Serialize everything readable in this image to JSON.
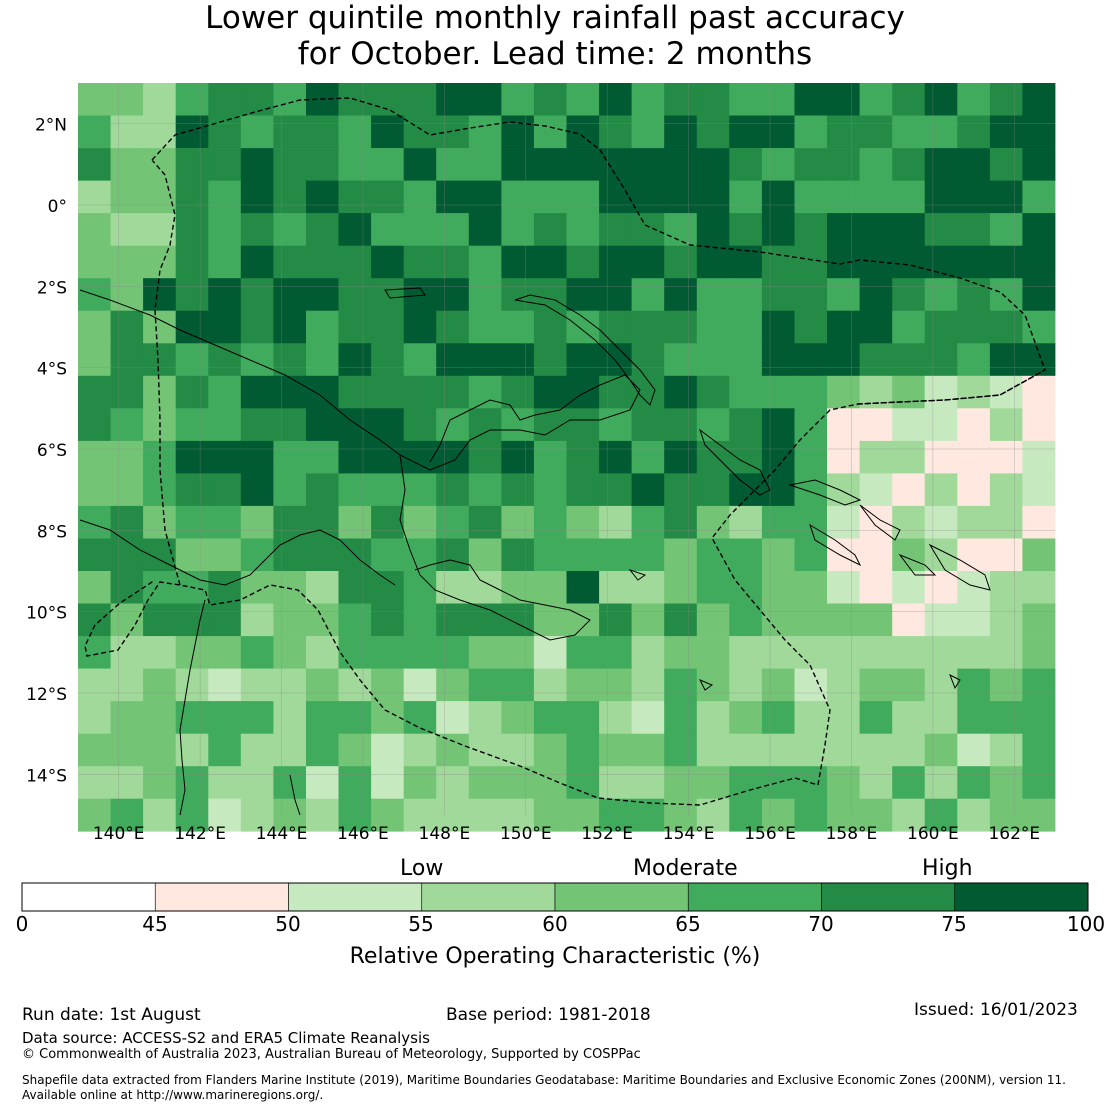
{
  "title_line1": "Lower quintile monthly rainfall past accuracy",
  "title_line2": "for October. Lead time: 2 months",
  "map": {
    "lat_labels": [
      "2°N",
      "0°",
      "2°S",
      "4°S",
      "6°S",
      "8°S",
      "10°S",
      "12°S",
      "14°S"
    ],
    "lon_labels": [
      "140°E",
      "142°E",
      "144°E",
      "146°E",
      "148°E",
      "150°E",
      "152°E",
      "154°E",
      "156°E",
      "158°E",
      "160°E",
      "162°E"
    ],
    "lat_values": [
      2,
      0,
      -2,
      -4,
      -6,
      -8,
      -10,
      -12,
      -14
    ],
    "lon_values": [
      140,
      142,
      144,
      146,
      148,
      150,
      152,
      154,
      156,
      158,
      160,
      162
    ],
    "extent": {
      "lon_min": 139.0,
      "lon_max": 163.0,
      "lat_min": -15.0,
      "lat_max": 3.0
    },
    "grid_resolution_deg": 0.8
  },
  "colorbar": {
    "category_labels": [
      "Low",
      "Moderate",
      "High"
    ],
    "ticks": [
      "0",
      "45",
      "50",
      "55",
      "60",
      "65",
      "70",
      "75",
      "100"
    ],
    "colors": [
      "#ffffff",
      "#fee8df",
      "#c7e9c0",
      "#a1d99b",
      "#74c476",
      "#41ab5d",
      "#238b45",
      "#005a32"
    ],
    "label": "Relative Operating Characteristic (%)"
  },
  "footer": {
    "run_date": "Run date: 1st August",
    "base_period": "Base period: 1981-2018",
    "issued": "Issued: 16/01/2023",
    "data_source": "Data source: ACCESS-S2 and ERA5 Climate Reanalysis",
    "copyright": "© Commonwealth of Australia 2023, Australian Bureau of Meteorology, Supported by COSPPac",
    "shapefile_line1": "Shapefile data extracted from Flanders Marine Institute (2019), Maritime Boundaries Geodatabase: Maritime Boundaries and Exclusive Economic Zones (200NM), version 11.",
    "shapefile_line2": "Available online at http://www.marineregions.org/."
  }
}
